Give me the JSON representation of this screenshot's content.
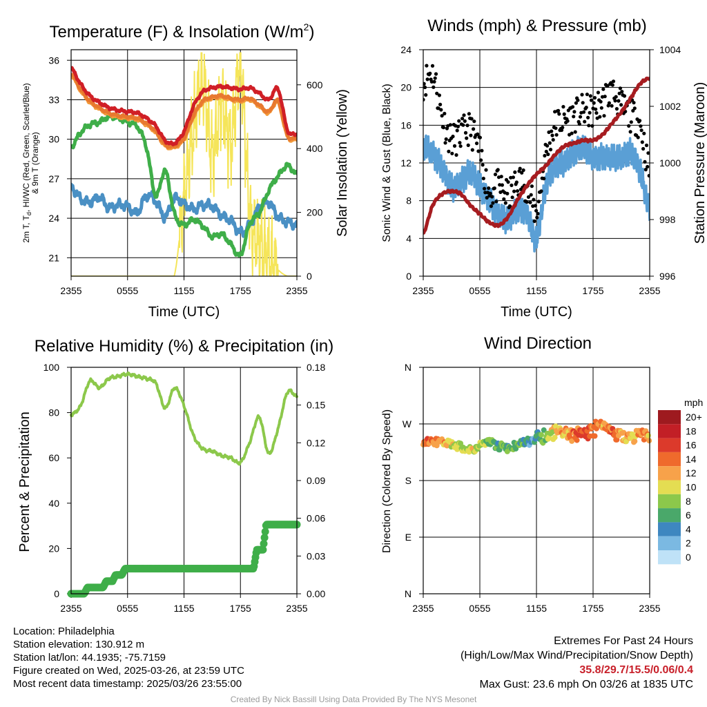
{
  "info": {
    "location": "Location: Philadelphia",
    "elevation": "Station elevation: 130.912 m",
    "latlon": "Station lat/lon: 44.1935; -75.7159",
    "created": "Figure created on Wed, 2025-03-26, at 23:59 UTC",
    "recent": "Most recent data timestamp: 2025/03/26 23:55:00"
  },
  "extremes": {
    "title": "Extremes For Past 24 Hours",
    "subtitle": "(High/Low/Max Wind/Precipitation/Snow Depth)",
    "values": "35.8/29.7/15.5/0.06/0.4",
    "gust": "Max Gust: 23.6 mph On 03/26 at 1835 UTC"
  },
  "credit": "Created By Nick Bassill Using Data Provided By The NYS Mesonet",
  "colors": {
    "temp": "#d01f26",
    "dewpoint": "#3fae49",
    "heat_index": "#e8792f",
    "nine_m": "#f29a3a",
    "wind_chill": "#4a90c4",
    "insolation": "#f5e55a",
    "wind": "#5a9fd5",
    "gust": "#000000",
    "pressure": "#a61c20",
    "rh": "#8cc84b",
    "precip": "#3fae49"
  },
  "chart_data": [
    {
      "type": "line",
      "title": "Temperature (F) & Insolation (W/m2)",
      "xlabel": "Time (UTC)",
      "ylabel": "2m T, Td, HI/WC (Red, Green, Scarlet/Blue) & 9m T (Orange)",
      "y2label": "Solar Insolation (Yellow)",
      "xticks": [
        "2355",
        "0555",
        "1155",
        "1755",
        "2355"
      ],
      "yticks": [
        21,
        24,
        27,
        30,
        33,
        36
      ],
      "y2ticks": [
        0,
        200,
        400,
        600
      ],
      "ylim": [
        19.6,
        36.8
      ],
      "y2lim": [
        0,
        710
      ],
      "x_hours": [
        0,
        1,
        2,
        3,
        4,
        5,
        6,
        7,
        8,
        9,
        10,
        11,
        12,
        13,
        14,
        15,
        16,
        17,
        18,
        19,
        20,
        21,
        22,
        23,
        24
      ],
      "series": [
        {
          "name": "2m T",
          "axis": "left",
          "values": [
            35.4,
            34.2,
            33.3,
            32.8,
            32.4,
            32.2,
            32.1,
            32.0,
            31.6,
            31.0,
            29.9,
            29.7,
            30.6,
            32.5,
            33.6,
            33.9,
            34.0,
            33.9,
            33.8,
            33.9,
            33.5,
            33.0,
            33.8,
            30.7,
            30.4
          ]
        },
        {
          "name": "Heat Index",
          "axis": "left",
          "values": [
            35.0,
            33.8,
            32.9,
            32.4,
            32.0,
            31.8,
            31.7,
            31.6,
            31.2,
            30.6,
            29.6,
            29.5,
            30.1,
            31.8,
            32.9,
            33.2,
            33.3,
            33.1,
            33.0,
            33.1,
            32.6,
            32.1,
            32.9,
            30.3,
            30.1
          ]
        },
        {
          "name": "9m T",
          "axis": "left",
          "values": [
            34.9,
            33.7,
            32.8,
            32.3,
            31.9,
            31.7,
            31.6,
            31.5,
            31.1,
            30.5,
            29.5,
            29.4,
            30.0,
            31.7,
            32.8,
            33.1,
            33.2,
            33.0,
            32.9,
            33.0,
            32.5,
            32.0,
            32.8,
            30.2,
            30.0
          ]
        },
        {
          "name": "Dewpoint",
          "axis": "left",
          "values": [
            29.4,
            30.5,
            31.1,
            31.3,
            31.7,
            31.6,
            31.3,
            31.0,
            29.4,
            25.7,
            27.6,
            24.3,
            23.5,
            23.9,
            23.4,
            22.6,
            22.8,
            22.0,
            21.2,
            23.6,
            24.4,
            26.1,
            27.2,
            28.0,
            27.3
          ]
        },
        {
          "name": "Wind Chill",
          "axis": "left",
          "values": [
            26.4,
            25.5,
            25.2,
            25.6,
            24.8,
            25.0,
            24.9,
            24.4,
            25.7,
            25.3,
            24.1,
            25.5,
            25.1,
            24.7,
            25.0,
            24.9,
            24.2,
            23.8,
            22.9,
            23.5,
            24.8,
            25.2,
            24.1,
            23.7,
            23.5
          ]
        },
        {
          "name": "Insolation",
          "axis": "right",
          "values": [
            0,
            0,
            0,
            0,
            0,
            0,
            0,
            0,
            0,
            0,
            0,
            5,
            250,
            460,
            610,
            380,
            540,
            420,
            650,
            190,
            110,
            60,
            20,
            0,
            0
          ]
        }
      ]
    },
    {
      "type": "scatter",
      "title": "Winds (mph) & Pressure (mb)",
      "xlabel": "Time (UTC)",
      "ylabel": "Sonic Wind & Gust (Blue, Black)",
      "y2label": "Station Pressure (Maroon)",
      "xticks": [
        "2355",
        "0555",
        "1155",
        "1755",
        "2355"
      ],
      "yticks": [
        0,
        4,
        8,
        12,
        16,
        20,
        24
      ],
      "y2ticks": [
        996,
        998,
        1000,
        1002,
        1004
      ],
      "ylim": [
        0,
        24
      ],
      "y2lim": [
        996,
        1004
      ],
      "x_hours": [
        0,
        1,
        2,
        3,
        4,
        5,
        6,
        7,
        8,
        9,
        10,
        11,
        12,
        13,
        14,
        15,
        16,
        17,
        18,
        19,
        20,
        21,
        22,
        23,
        24
      ],
      "series": [
        {
          "name": "Sonic Wind",
          "axis": "left",
          "values": [
            14.0,
            13.0,
            11.5,
            9.5,
            10.0,
            11.0,
            9.5,
            8.0,
            6.5,
            6.0,
            7.0,
            6.5,
            4.0,
            9.5,
            11.5,
            12.0,
            13.0,
            13.5,
            12.5,
            12.5,
            12.5,
            12.5,
            13.0,
            11.0,
            7.0
          ]
        },
        {
          "name": "Gust",
          "axis": "left",
          "values": [
            20.5,
            21.5,
            17.0,
            14.5,
            15.0,
            15.5,
            13.0,
            9.0,
            9.5,
            8.5,
            10.0,
            9.5,
            7.0,
            13.0,
            16.0,
            16.5,
            17.0,
            17.5,
            17.5,
            18.5,
            19.5,
            18.0,
            17.0,
            16.0,
            11.0
          ]
        },
        {
          "name": "Station Pressure",
          "axis": "right",
          "values": [
            997.5,
            998.5,
            998.9,
            999.0,
            998.9,
            998.5,
            998.2,
            997.9,
            997.8,
            998.1,
            998.7,
            999.2,
            999.6,
            999.9,
            1000.3,
            1000.6,
            1000.7,
            1000.8,
            1000.8,
            1001.0,
            1001.4,
            1001.8,
            1002.3,
            1002.8,
            1003.0
          ]
        }
      ]
    },
    {
      "type": "line",
      "title": "Relative Humidity (%) & Precipitation (in)",
      "xlabel": "",
      "ylabel": "Percent & Precipitation",
      "xticks": [
        "2355",
        "0555",
        "1155",
        "1755",
        "2355"
      ],
      "yticks": [
        0,
        20,
        40,
        60,
        80,
        100
      ],
      "y2ticks": [
        "0.00",
        "0.03",
        "0.06",
        "0.09",
        "0.12",
        "0.15",
        "0.18"
      ],
      "ylim": [
        0,
        100
      ],
      "y2lim": [
        0,
        0.18
      ],
      "x_hours": [
        0,
        1,
        2,
        3,
        4,
        5,
        6,
        7,
        8,
        9,
        10,
        11,
        12,
        13,
        14,
        15,
        16,
        17,
        18,
        19,
        20,
        21,
        22,
        23,
        24
      ],
      "series": [
        {
          "name": "RH",
          "axis": "left",
          "values": [
            79,
            83,
            94,
            91,
            95,
            96,
            97,
            96,
            95,
            93,
            82,
            91,
            83,
            70,
            64,
            63,
            61,
            60,
            58,
            67,
            78,
            62,
            73,
            89,
            87
          ]
        },
        {
          "name": "Precip",
          "axis": "right",
          "values": [
            0.0,
            0.0,
            0.005,
            0.005,
            0.01,
            0.015,
            0.02,
            0.02,
            0.02,
            0.02,
            0.02,
            0.02,
            0.02,
            0.02,
            0.02,
            0.02,
            0.02,
            0.02,
            0.02,
            0.02,
            0.035,
            0.055,
            0.055,
            0.055,
            0.055
          ]
        }
      ]
    },
    {
      "type": "scatter",
      "title": "Wind Direction",
      "xlabel": "",
      "ylabel": "Direction (Colored By Speed)",
      "xticks": [
        "2355",
        "0555",
        "1155",
        "1755",
        "2355"
      ],
      "yticks": [
        "N",
        "E",
        "S",
        "W",
        "N"
      ],
      "ylim": [
        0,
        360
      ],
      "legend": {
        "title": "mph",
        "labels": [
          "20+",
          "18",
          "16",
          "14",
          "12",
          "10",
          "8",
          "6",
          "4",
          "2",
          "0"
        ],
        "colors": [
          "#9e1a1f",
          "#c21f26",
          "#dc3a2b",
          "#ef6a2c",
          "#f7a24a",
          "#e4dd52",
          "#8cc84b",
          "#4aa86a",
          "#3e87c0",
          "#7bb9e2",
          "#bfe2f7"
        ],
        "placement": "right"
      },
      "x_hours": [
        0,
        1,
        2,
        3,
        4,
        5,
        6,
        7,
        8,
        9,
        10,
        11,
        12,
        13,
        14,
        15,
        16,
        17,
        18,
        19,
        20,
        21,
        22,
        23,
        24
      ],
      "series": [
        {
          "name": "Direction",
          "values": [
            243,
            242,
            240,
            238,
            233,
            228,
            236,
            240,
            235,
            231,
            237,
            241,
            246,
            253,
            255,
            258,
            252,
            256,
            259,
            274,
            257,
            252,
            248,
            253,
            244
          ]
        },
        {
          "name": "Speed",
          "values": [
            13,
            14,
            12,
            10,
            9,
            10,
            8,
            7,
            6,
            6,
            7,
            5,
            4,
            8,
            11,
            12,
            14,
            15,
            13,
            12,
            14,
            12,
            11,
            13,
            12
          ]
        }
      ]
    }
  ]
}
